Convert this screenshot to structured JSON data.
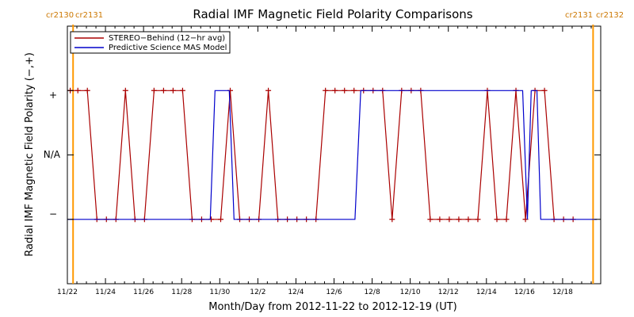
{
  "chart_data": {
    "type": "line",
    "title": "Radial IMF Magnetic Field Polarity Comparisons",
    "xlabel": "Month/Day from 2012-11-22 to 2012-12-19 (UT)",
    "ylabel": "Radial IMF Magnetic Field Polarity (−,+)",
    "x_ticks": [
      "11/22",
      "11/24",
      "11/26",
      "11/28",
      "11/30",
      "12/2",
      "12/4",
      "12/6",
      "12/8",
      "12/10",
      "12/12",
      "12/14",
      "12/16",
      "12/18"
    ],
    "x_start": "2012-11-22",
    "xlim_days": [
      0,
      28
    ],
    "y_levels": [
      -1,
      0,
      1
    ],
    "y_tick_labels": [
      "−",
      "N/A",
      "+"
    ],
    "ylim": [
      -2,
      2
    ],
    "legend_position": "top-left",
    "carrington_markers": [
      {
        "day": 0.3,
        "left_label": "cr2130",
        "right_label": "cr2131",
        "color": "#ff9900"
      },
      {
        "day": 27.6,
        "left_label": "cr2131",
        "right_label": "cr2132",
        "color": "#ff9900"
      }
    ],
    "series": [
      {
        "name": "STEREO−Behind (12−hr avg)",
        "color": "#aa0000",
        "marker": "plus",
        "points": [
          [
            0.15,
            1
          ],
          [
            0.55,
            1
          ],
          [
            1.05,
            1
          ],
          [
            1.55,
            -1
          ],
          [
            2.05,
            -1
          ],
          [
            2.55,
            -1
          ],
          [
            3.05,
            1
          ],
          [
            3.55,
            -1
          ],
          [
            4.05,
            -1
          ],
          [
            4.55,
            1
          ],
          [
            5.05,
            1
          ],
          [
            5.55,
            1
          ],
          [
            6.05,
            1
          ],
          [
            6.55,
            -1
          ],
          [
            7.05,
            -1
          ],
          [
            7.55,
            -1
          ],
          [
            8.05,
            -1
          ],
          [
            8.55,
            1
          ],
          [
            9.05,
            -1
          ],
          [
            9.55,
            -1
          ],
          [
            10.05,
            -1
          ],
          [
            10.55,
            1
          ],
          [
            11.05,
            -1
          ],
          [
            11.55,
            -1
          ],
          [
            12.05,
            -1
          ],
          [
            12.55,
            -1
          ],
          [
            13.05,
            -1
          ],
          [
            13.55,
            1
          ],
          [
            14.05,
            1
          ],
          [
            14.55,
            1
          ],
          [
            15.05,
            1
          ],
          [
            15.55,
            1
          ],
          [
            16.05,
            1
          ],
          [
            16.55,
            1
          ],
          [
            17.05,
            -1
          ],
          [
            17.55,
            1
          ],
          [
            18.05,
            1
          ],
          [
            18.55,
            1
          ],
          [
            19.05,
            -1
          ],
          [
            19.55,
            -1
          ],
          [
            20.05,
            -1
          ],
          [
            20.55,
            -1
          ],
          [
            21.05,
            -1
          ],
          [
            21.55,
            -1
          ],
          [
            22.05,
            1
          ],
          [
            22.55,
            -1
          ],
          [
            23.05,
            -1
          ],
          [
            23.55,
            1
          ],
          [
            24.05,
            -1
          ],
          [
            24.55,
            1
          ],
          [
            25.05,
            1
          ],
          [
            25.55,
            -1
          ],
          [
            26.05,
            -1
          ],
          [
            26.55,
            -1
          ]
        ]
      },
      {
        "name": "Predictive Science MAS Model",
        "color": "#0000cc",
        "marker": "none",
        "points": [
          [
            0.0,
            -1
          ],
          [
            7.5,
            -1
          ],
          [
            7.75,
            1
          ],
          [
            8.5,
            1
          ],
          [
            8.75,
            -1
          ],
          [
            15.1,
            -1
          ],
          [
            15.4,
            1
          ],
          [
            23.9,
            1
          ],
          [
            24.15,
            -1
          ],
          [
            24.35,
            1
          ],
          [
            24.65,
            1
          ],
          [
            24.85,
            -1
          ],
          [
            27.8,
            -1
          ]
        ]
      }
    ]
  }
}
